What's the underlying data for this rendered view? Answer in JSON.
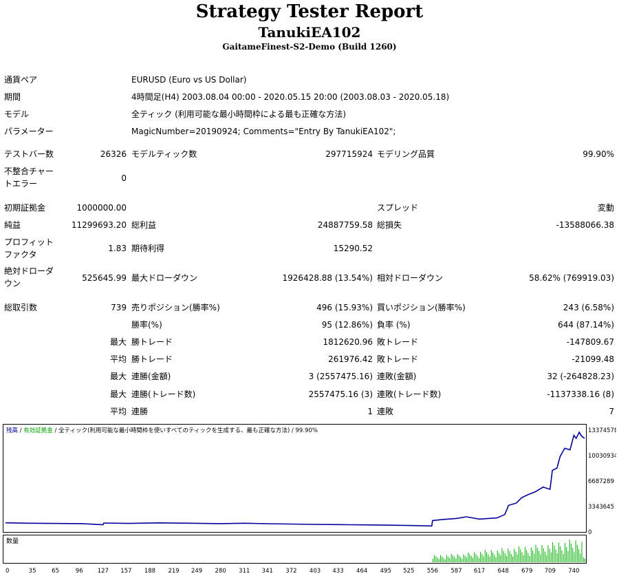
{
  "header": {
    "title": "Strategy Tester Report",
    "ea_name": "TanukiEA102",
    "server": "GaitameFinest-S2-Demo (Build 1260)"
  },
  "info": {
    "symbol_label": "通貨ペア",
    "symbol": "EURUSD (Euro vs US Dollar)",
    "period_label": "期間",
    "period": "4時間足(H4) 2003.08.04 00:00 - 2020.05.15 20:00 (2003.08.03 - 2020.05.18)",
    "model_label": "モデル",
    "model": "全ティック (利用可能な最小時間枠による最も正確な方法)",
    "params_label": "パラメーター",
    "params": "MagicNumber=20190924; Comments=\"Entry By TanukiEA102\";"
  },
  "stats": {
    "bars_label": "テストバー数",
    "bars": "26326",
    "ticks_label": "モデルティック数",
    "ticks": "297715924",
    "quality_label": "モデリング品質",
    "quality": "99.90%",
    "mismatch_label": "不整合チャートエラー",
    "mismatch": "0",
    "deposit_label": "初期証拠金",
    "deposit": "1000000.00",
    "spread_label": "スプレッド",
    "spread": "変動",
    "net_label": "純益",
    "net": "11299693.20",
    "gross_profit_label": "総利益",
    "gross_profit": "24887759.58",
    "gross_loss_label": "総損失",
    "gross_loss": "-13588066.38",
    "pf_label": "プロフィットファクタ",
    "pf": "1.83",
    "expected_label": "期待利得",
    "expected": "15290.52",
    "abs_dd_label": "絶対ドローダウン",
    "abs_dd": "525645.99",
    "max_dd_label": "最大ドローダウン",
    "max_dd": "1926428.88 (13.54%)",
    "rel_dd_label": "相対ドローダウン",
    "rel_dd": "58.62% (769919.03)",
    "trades_label": "総取引数",
    "trades": "739",
    "short_label": "売りポジション(勝率%)",
    "short": "496 (15.93%)",
    "long_label": "買いポジション(勝率%)",
    "long": "243 (6.58%)",
    "win_label": "勝率(%)",
    "win": "95 (12.86%)",
    "loss_label": "負率 (%)",
    "loss": "644 (87.14%)",
    "max_label": "最大",
    "avg_label": "平均",
    "largest_win_label": "勝トレード",
    "largest_win": "1812620.96",
    "largest_loss_label": "敗トレード",
    "largest_loss": "-147809.67",
    "avg_win_label": "勝トレード",
    "avg_win": "261976.42",
    "avg_loss_label": "敗トレード",
    "avg_loss": "-21099.48",
    "cons_wins_money_label": "連勝(金額)",
    "cons_wins_money": "3 (2557475.16)",
    "cons_losses_money_label": "連敗(金額)",
    "cons_losses_money": "32 (-264828.23)",
    "cons_profit_label": "連勝(トレード数)",
    "cons_profit": "2557475.16 (3)",
    "cons_loss_label": "連敗(トレード数)",
    "cons_loss": "-1137338.16 (8)",
    "avg_cons_wins_label": "連勝",
    "avg_cons_wins": "1",
    "avg_cons_losses_label": "連敗",
    "avg_cons_losses": "7"
  },
  "chart_data": {
    "type": "line",
    "legend_balance": "残高",
    "legend_sep1": " / ",
    "legend_equity": "有効証拠金",
    "legend_rest": " / 全ティック(利用可能な最小時間枠を使いすべてのティックを生成する、最も正確な方法) / 99.90%",
    "volume_label": "数量",
    "colors": {
      "balance": "#00009c",
      "equity": "#00a000",
      "volume": "#00b000"
    },
    "ylim": [
      0,
      13374578
    ],
    "y_ticks": [
      13374578,
      10030934,
      6687289,
      3343645,
      0
    ],
    "x_ticks": [
      0,
      35,
      65,
      96,
      127,
      157,
      188,
      219,
      249,
      280,
      311,
      341,
      372,
      403,
      433,
      464,
      495,
      525,
      556,
      587,
      617,
      648,
      679,
      709,
      740
    ],
    "xlim": [
      0,
      754
    ],
    "series": [
      {
        "values_xy": [
          [
            0,
            1110000
          ],
          [
            30,
            1060000
          ],
          [
            60,
            1030000
          ],
          [
            100,
            1000000
          ],
          [
            127,
            850000
          ],
          [
            128,
            1080000
          ],
          [
            160,
            1030000
          ],
          [
            200,
            1100000
          ],
          [
            240,
            1060000
          ],
          [
            280,
            1000000
          ],
          [
            311,
            1060000
          ],
          [
            340,
            990000
          ],
          [
            372,
            950000
          ],
          [
            400,
            900000
          ],
          [
            433,
            880000
          ],
          [
            464,
            840000
          ],
          [
            495,
            800000
          ],
          [
            525,
            760000
          ],
          [
            555,
            700000
          ],
          [
            556,
            1400000
          ],
          [
            570,
            1550000
          ],
          [
            587,
            1680000
          ],
          [
            600,
            1900000
          ],
          [
            617,
            1600000
          ],
          [
            640,
            1750000
          ],
          [
            650,
            2200000
          ],
          [
            655,
            3400000
          ],
          [
            665,
            3700000
          ],
          [
            672,
            4400000
          ],
          [
            680,
            4800000
          ],
          [
            690,
            5200000
          ],
          [
            700,
            5800000
          ],
          [
            709,
            5500000
          ],
          [
            712,
            8000000
          ],
          [
            718,
            8300000
          ],
          [
            722,
            9800000
          ],
          [
            728,
            10900000
          ],
          [
            735,
            10700000
          ],
          [
            740,
            12600000
          ],
          [
            743,
            12200000
          ],
          [
            747,
            13000000
          ],
          [
            750,
            12500000
          ],
          [
            754,
            12200000
          ]
        ]
      }
    ],
    "volume": [
      [
        556,
        0.3
      ],
      [
        580,
        0.35
      ],
      [
        600,
        0.4
      ],
      [
        617,
        0.5
      ],
      [
        630,
        0.55
      ],
      [
        648,
        0.6
      ],
      [
        660,
        0.65
      ],
      [
        679,
        0.7
      ],
      [
        690,
        0.75
      ],
      [
        700,
        0.8
      ],
      [
        709,
        0.85
      ],
      [
        720,
        0.9
      ],
      [
        730,
        0.95
      ],
      [
        740,
        1.0
      ],
      [
        750,
        1.0
      ]
    ]
  }
}
